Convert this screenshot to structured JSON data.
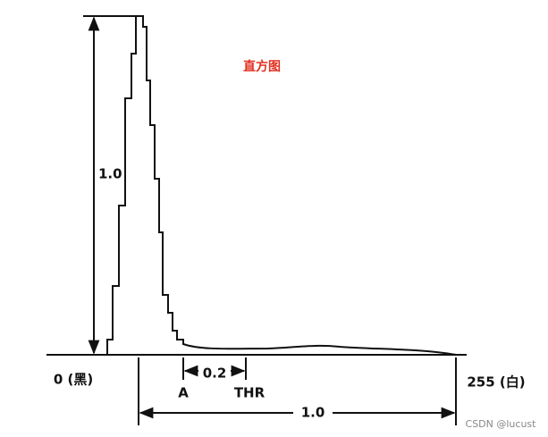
{
  "title": "直方图",
  "labels": {
    "height": "1.0",
    "gap": "0.2",
    "point_a": "A",
    "threshold": "THR",
    "width": "1.0",
    "left_end": "0 (黑)",
    "right_end": "255 (白)"
  },
  "watermark": "CSDN @lucust"
}
